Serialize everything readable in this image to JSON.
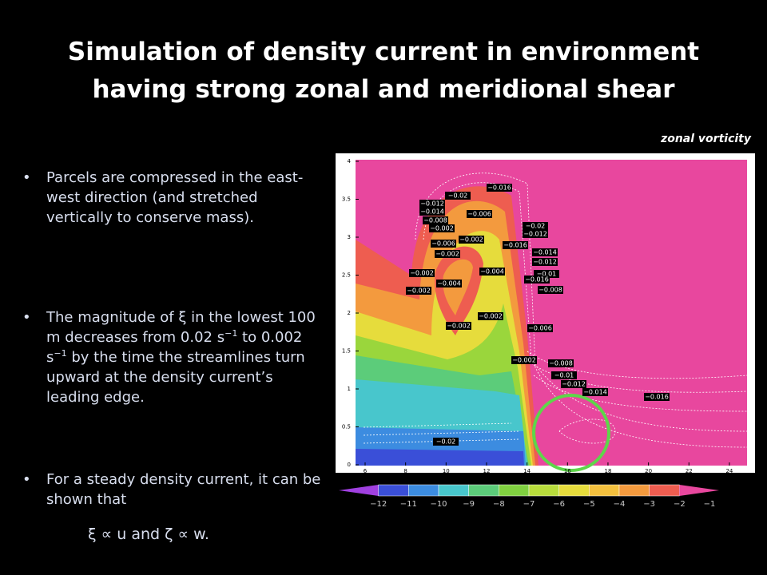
{
  "title": "Simulation of density current in environment having strong zonal and meridional shear",
  "figure_label": "zonal vorticity",
  "bullets": [
    "Parcels are compressed in the east-west direction (and stretched vertically to conserve mass).",
    [
      "The magnitude of ξ in the lowest 100 m decreases from 0.02 s",
      "−1",
      " to 0.002  s",
      "−1",
      " by the time the streamlines turn upward at the density current’s leading edge."
    ],
    "For a steady density current, it can be shown that"
  ],
  "formula": "ξ ∝ u and ζ ∝ w.",
  "plot": {
    "yticks": [
      {
        "value": 0,
        "label": "0"
      },
      {
        "value": 0.5,
        "label": "0.5"
      },
      {
        "value": 1,
        "label": "1"
      },
      {
        "value": 1.5,
        "label": "1.5"
      },
      {
        "value": 2,
        "label": "2"
      },
      {
        "value": 2.5,
        "label": "2.5"
      },
      {
        "value": 3,
        "label": "3"
      },
      {
        "value": 3.5,
        "label": "3.5"
      },
      {
        "value": 4,
        "label": "4"
      }
    ],
    "xticks": [
      6,
      8,
      10,
      12,
      14,
      16,
      18,
      20,
      22,
      24
    ],
    "colorbar_labels": [
      "−12",
      "−11",
      "−10",
      "−9",
      "−8",
      "−7",
      "−6",
      "−5",
      "−4",
      "−3",
      "−2",
      "−1"
    ],
    "contour_labels": [
      "−0.016",
      "−0.02",
      "−0.012",
      "−0.014",
      "−0.006",
      "−0.008",
      "−0.002",
      "−0.02",
      "−0.012",
      "−0.006",
      "−0.002",
      "−0.016",
      "−0.002",
      "−0.014",
      "−0.012",
      "−0.004",
      "−0.01",
      "−0.002",
      "−0.004",
      "−0.016",
      "−0.002",
      "−0.008",
      "−0.002",
      "−0.002",
      "−0.006",
      "−0.002",
      "−0.008",
      "−0.01",
      "−0.012",
      "−0.014",
      "−0.016",
      "−0.02"
    ]
  }
}
